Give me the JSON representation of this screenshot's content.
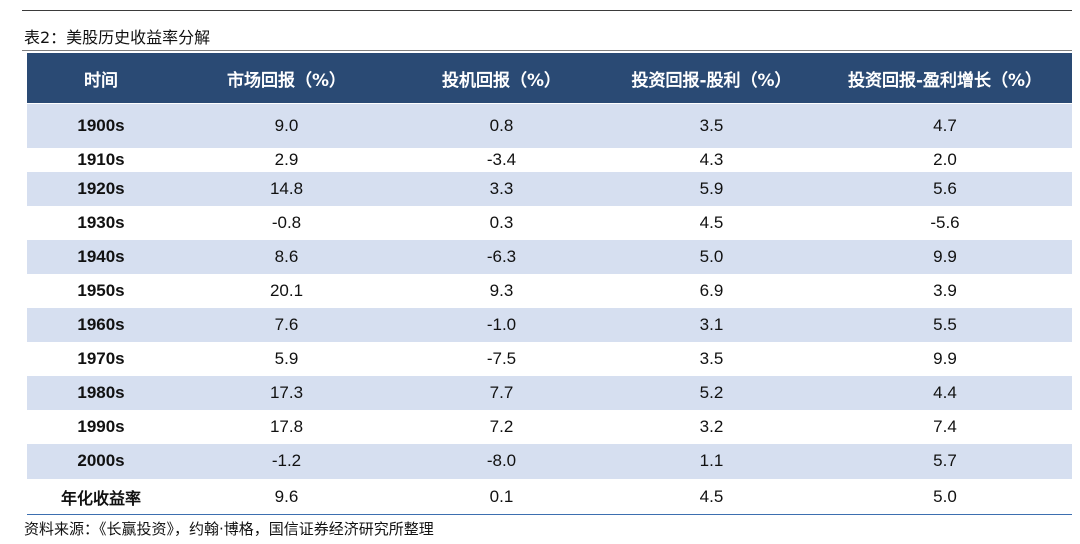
{
  "table": {
    "caption": "表2：美股历史收益率分解",
    "headers": [
      "时间",
      "市场回报（%）",
      "投机回报（%）",
      "投资回报-股利（%）",
      "投资回报-盈利增长（%）"
    ],
    "rows": [
      {
        "period": "1900s",
        "market": "9.0",
        "speculative": "0.8",
        "dividend": "3.5",
        "earnings_growth": "4.7"
      },
      {
        "period": "1910s",
        "market": "2.9",
        "speculative": "-3.4",
        "dividend": "4.3",
        "earnings_growth": "2.0"
      },
      {
        "period": "1920s",
        "market": "14.8",
        "speculative": "3.3",
        "dividend": "5.9",
        "earnings_growth": "5.6"
      },
      {
        "period": "1930s",
        "market": "-0.8",
        "speculative": "0.3",
        "dividend": "4.5",
        "earnings_growth": "-5.6"
      },
      {
        "period": "1940s",
        "market": "8.6",
        "speculative": "-6.3",
        "dividend": "5.0",
        "earnings_growth": "9.9"
      },
      {
        "period": "1950s",
        "market": "20.1",
        "speculative": "9.3",
        "dividend": "6.9",
        "earnings_growth": "3.9"
      },
      {
        "period": "1960s",
        "market": "7.6",
        "speculative": "-1.0",
        "dividend": "3.1",
        "earnings_growth": "5.5"
      },
      {
        "period": "1970s",
        "market": "5.9",
        "speculative": "-7.5",
        "dividend": "3.5",
        "earnings_growth": "9.9"
      },
      {
        "period": "1980s",
        "market": "17.3",
        "speculative": "7.7",
        "dividend": "5.2",
        "earnings_growth": "4.4"
      },
      {
        "period": "1990s",
        "market": "17.8",
        "speculative": "7.2",
        "dividend": "3.2",
        "earnings_growth": "7.4"
      },
      {
        "period": "2000s",
        "market": "-1.2",
        "speculative": "-8.0",
        "dividend": "1.1",
        "earnings_growth": "5.7"
      },
      {
        "period": "年化收益率",
        "market": "9.6",
        "speculative": "0.1",
        "dividend": "4.5",
        "earnings_growth": "5.0"
      }
    ],
    "source": "资料来源：《长赢投资》，约翰·博格，国信证券经济研究所整理"
  },
  "colors": {
    "header_bg": "#2a4a74",
    "header_text": "#ffffff",
    "stripe_bg": "#d6dff0",
    "bottom_rule": "#3d6fb0"
  }
}
